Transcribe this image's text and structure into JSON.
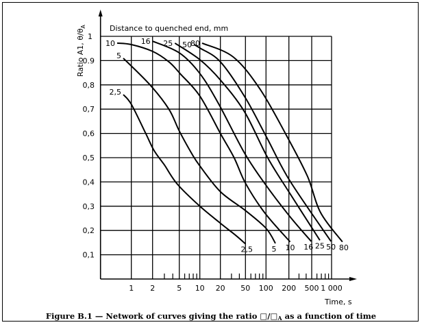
{
  "chart_data": {
    "type": "line",
    "title": "",
    "legend_title": "Distance to quenched end, mm",
    "xlabel": "Time, s",
    "ylabel": "Ratio A1, θ/θ",
    "ylabel_sub": "A",
    "x_scale": "log-like (non-uniform)",
    "x_ticks": [
      1,
      2,
      5,
      10,
      20,
      50,
      100,
      200,
      500,
      1000
    ],
    "x_tick_labels": [
      "1",
      "2",
      "5",
      "10",
      "20",
      "50",
      "100",
      "200",
      "500",
      "1 000"
    ],
    "x_minor_ticks": [
      3,
      4,
      6,
      7,
      8,
      9,
      30,
      40,
      60,
      70,
      80,
      90,
      300,
      400,
      600,
      700,
      800,
      900
    ],
    "y_ticks": [
      0.1,
      0.2,
      0.3,
      0.4,
      0.5,
      0.6,
      0.7,
      0.8,
      0.9,
      1
    ],
    "y_tick_labels": [
      "0,1",
      "0,2",
      "0,3",
      "0,4",
      "0,5",
      "0,6",
      "0,7",
      "0,8",
      "0.9",
      "1"
    ],
    "ylim": [
      0,
      1
    ],
    "grid": true,
    "series": [
      {
        "name": "2,5",
        "points": [
          [
            0.77,
            0.76
          ],
          [
            1,
            0.72
          ],
          [
            1.6,
            0.6
          ],
          [
            2.1,
            0.53
          ],
          [
            3,
            0.47
          ],
          [
            4.7,
            0.39
          ],
          [
            10,
            0.3
          ],
          [
            20,
            0.23
          ],
          [
            35,
            0.18
          ],
          [
            50,
            0.145
          ]
        ]
      },
      {
        "name": "5",
        "points": [
          [
            0.77,
            0.91
          ],
          [
            1.84,
            0.8
          ],
          [
            3.5,
            0.7
          ],
          [
            5,
            0.61
          ],
          [
            7.5,
            0.52
          ],
          [
            10,
            0.466
          ],
          [
            20,
            0.36
          ],
          [
            50,
            0.282
          ],
          [
            100,
            0.209
          ],
          [
            133,
            0.147
          ]
        ]
      },
      {
        "name": "10",
        "points": [
          [
            0.63,
            0.972
          ],
          [
            1,
            0.966
          ],
          [
            2,
            0.938
          ],
          [
            3.5,
            0.895
          ],
          [
            5.2,
            0.845
          ],
          [
            10,
            0.754
          ],
          [
            20,
            0.6
          ],
          [
            33,
            0.5
          ],
          [
            50,
            0.395
          ],
          [
            95,
            0.274
          ],
          [
            210,
            0.153
          ]
        ]
      },
      {
        "name": "16",
        "points": [
          [
            2,
            0.98
          ],
          [
            5,
            0.932
          ],
          [
            10,
            0.847
          ],
          [
            19,
            0.72
          ],
          [
            48,
            0.52
          ],
          [
            95,
            0.395
          ],
          [
            197,
            0.265
          ],
          [
            490,
            0.155
          ]
        ]
      },
      {
        "name": "25",
        "points": [
          [
            4.3,
            0.972
          ],
          [
            10,
            0.904
          ],
          [
            20,
            0.82
          ],
          [
            48,
            0.69
          ],
          [
            105,
            0.5
          ],
          [
            200,
            0.359
          ],
          [
            665,
            0.16
          ]
        ]
      },
      {
        "name": "50",
        "points": [
          [
            8.2,
            0.966
          ],
          [
            10,
            0.952
          ],
          [
            20,
            0.895
          ],
          [
            50,
            0.746
          ],
          [
            105,
            0.576
          ],
          [
            205,
            0.407
          ],
          [
            980,
            0.155
          ]
        ]
      },
      {
        "name": "80",
        "points": [
          [
            10.8,
            0.972
          ],
          [
            32,
            0.915
          ],
          [
            82,
            0.782
          ],
          [
            185,
            0.593
          ],
          [
            420,
            0.424
          ],
          [
            680,
            0.274
          ],
          [
            1460,
            0.153
          ]
        ]
      }
    ]
  },
  "caption": {
    "prefix": "Figure B.1 — Network of curves giving the ratio ",
    "symbol": "□/□",
    "symbol_sub": "A",
    "suffix": " as a function of time"
  }
}
